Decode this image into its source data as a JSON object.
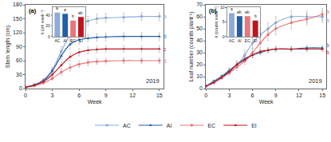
{
  "chart_data": [
    {
      "type": "line",
      "title": "(a)",
      "x_label": "Week",
      "y_label": "Stem length (cm)",
      "x": [
        0,
        1,
        2,
        3,
        4,
        5,
        6,
        7,
        8,
        9,
        11,
        13,
        15
      ],
      "xlim": [
        0,
        15.5
      ],
      "xticks": [
        0,
        3,
        6,
        9,
        12,
        15
      ],
      "ylim": [
        0,
        180
      ],
      "yticks": [
        0,
        30,
        60,
        90,
        120,
        150,
        180
      ],
      "grid": false,
      "legend": "bottom",
      "series": [
        {
          "name": "AC",
          "color": "#8eaadb",
          "marker": "circle",
          "values": [
            3,
            8,
            18,
            40,
            80,
            115,
            135,
            145,
            150,
            152,
            153,
            155,
            155
          ],
          "errors": [
            1,
            2,
            3,
            6,
            10,
            12,
            12,
            10,
            10,
            9,
            9,
            8,
            8
          ]
        },
        {
          "name": "AI",
          "color": "#1f5fa8",
          "marker": "triangle-up",
          "values": [
            3,
            8,
            17,
            38,
            70,
            95,
            105,
            108,
            110,
            111,
            112,
            112,
            112
          ],
          "errors": [
            1,
            2,
            3,
            5,
            8,
            10,
            9,
            8,
            8,
            8,
            8,
            8,
            8
          ]
        },
        {
          "name": "EC",
          "color": "#e8777a",
          "marker": "circle",
          "values": [
            3,
            6,
            12,
            22,
            35,
            45,
            52,
            56,
            58,
            59,
            60,
            60,
            60
          ],
          "errors": [
            1,
            1,
            2,
            4,
            6,
            7,
            7,
            7,
            6,
            6,
            6,
            6,
            6
          ]
        },
        {
          "name": "EI",
          "color": "#c0141c",
          "marker": "triangle-up",
          "values": [
            3,
            7,
            15,
            30,
            50,
            68,
            78,
            82,
            84,
            85,
            85,
            85,
            85
          ],
          "errors": [
            1,
            2,
            3,
            5,
            7,
            8,
            8,
            8,
            7,
            7,
            7,
            7,
            7
          ]
        }
      ],
      "annotations": [
        {
          "text": "a",
          "series": "AC"
        },
        {
          "text": "b",
          "series": "AI"
        },
        {
          "text": "d",
          "series": "EC"
        },
        {
          "text": "c",
          "series": "EI"
        },
        {
          "text": "2019"
        }
      ]
    },
    {
      "type": "line",
      "title": "(b)",
      "x_label": "Week",
      "y_label": "Leaf number (counts plant⁻¹)",
      "x": [
        0,
        1,
        2,
        3,
        4,
        5,
        6,
        7,
        8,
        9,
        11,
        13,
        15
      ],
      "xlim": [
        0,
        15.5
      ],
      "xticks": [
        0,
        3,
        6,
        9,
        12,
        15
      ],
      "ylim": [
        0,
        70
      ],
      "yticks": [
        0,
        10,
        20,
        30,
        40,
        50,
        60,
        70
      ],
      "grid": false,
      "series": [
        {
          "name": "AC",
          "color": "#8eaadb",
          "marker": "circle",
          "values": [
            2,
            6,
            10,
            15,
            20,
            28,
            38,
            45,
            50,
            55,
            60,
            60,
            60
          ],
          "errors": [
            1,
            1,
            2,
            2,
            3,
            4,
            5,
            5,
            5,
            5,
            5,
            5,
            5
          ]
        },
        {
          "name": "AI",
          "color": "#1f5fa8",
          "marker": "triangle-up",
          "values": [
            2,
            6,
            10,
            15,
            20,
            25,
            28,
            30,
            32,
            33,
            33,
            34,
            34
          ],
          "errors": [
            1,
            1,
            1,
            2,
            2,
            2,
            2,
            2,
            2,
            2,
            2,
            2,
            2
          ]
        },
        {
          "name": "EC",
          "color": "#e8777a",
          "marker": "circle",
          "values": [
            2,
            5,
            9,
            13,
            18,
            23,
            30,
            38,
            45,
            50,
            55,
            58,
            62
          ],
          "errors": [
            1,
            1,
            1,
            2,
            3,
            3,
            4,
            4,
            5,
            5,
            5,
            5,
            5
          ]
        },
        {
          "name": "EI",
          "color": "#c0141c",
          "marker": "triangle-up",
          "values": [
            2,
            5,
            9,
            14,
            20,
            24,
            28,
            31,
            32,
            33,
            33,
            33,
            33
          ],
          "errors": [
            1,
            1,
            1,
            2,
            2,
            2,
            2,
            2,
            2,
            2,
            2,
            2,
            2
          ]
        }
      ],
      "annotations": [
        {
          "text": "a",
          "series": "AC"
        },
        {
          "text": "b",
          "series": "AI"
        },
        {
          "text": "a",
          "series": "EC"
        },
        {
          "text": "b",
          "series": "EI"
        },
        {
          "text": "2019"
        }
      ]
    },
    {
      "type": "bar",
      "y_label": "k (cm week⁻¹)",
      "categories": [
        "AC",
        "AI",
        "EC",
        "EI"
      ],
      "values": [
        45,
        43,
        30,
        37
      ],
      "colors": [
        "#8eaadb",
        "#1f5fa8",
        "#e8777a",
        "#c0141c"
      ],
      "ylim": [
        0,
        55
      ],
      "yticks": [
        0,
        20,
        40
      ],
      "annotations": [
        {
          "text": "a",
          "category": "AC"
        },
        {
          "text": "a",
          "category": "AI"
        },
        {
          "text": "b",
          "category": "EC"
        },
        {
          "text": "ab",
          "category": "EI"
        }
      ]
    },
    {
      "type": "bar",
      "y_label": "k (counts week⁻¹)",
      "categories": [
        "AC",
        "AI",
        "EC",
        "EI"
      ],
      "values": [
        8,
        7,
        7,
        5.5
      ],
      "colors": [
        "#8eaadb",
        "#1f5fa8",
        "#e8777a",
        "#c0141c"
      ],
      "ylim": [
        0,
        10
      ],
      "yticks": [
        0,
        5,
        10
      ],
      "annotations": [
        {
          "text": "a",
          "category": "AC"
        },
        {
          "text": "ab",
          "category": "AI"
        },
        {
          "text": "ab",
          "category": "EC"
        },
        {
          "text": "b",
          "category": "EI"
        }
      ]
    }
  ]
}
